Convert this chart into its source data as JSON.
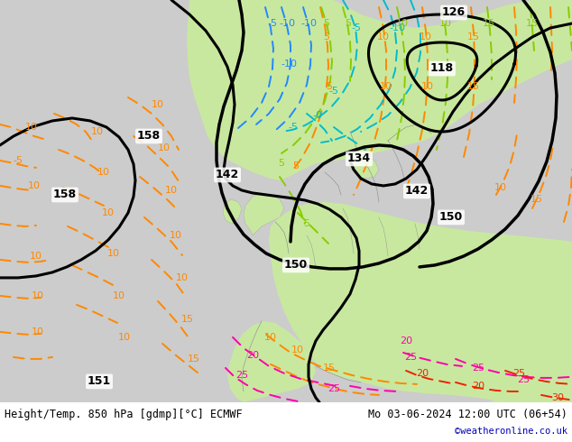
{
  "title_left": "Height/Temp. 850 hPa [gdmp][°C] ECMWF",
  "title_right": "Mo 03-06-2024 12:00 UTC (06+54)",
  "credit": "©weatheronline.co.uk",
  "fig_width": 6.34,
  "fig_height": 4.9,
  "dpi": 100,
  "background_color": "#ffffff",
  "land_green": "#c8e8a0",
  "land_green2": "#d4eeaa",
  "sea_gray": "#c8c8c8",
  "sea_gray2": "#d0d0d0",
  "footer_color": "#000000",
  "credit_color": "#0000bb"
}
